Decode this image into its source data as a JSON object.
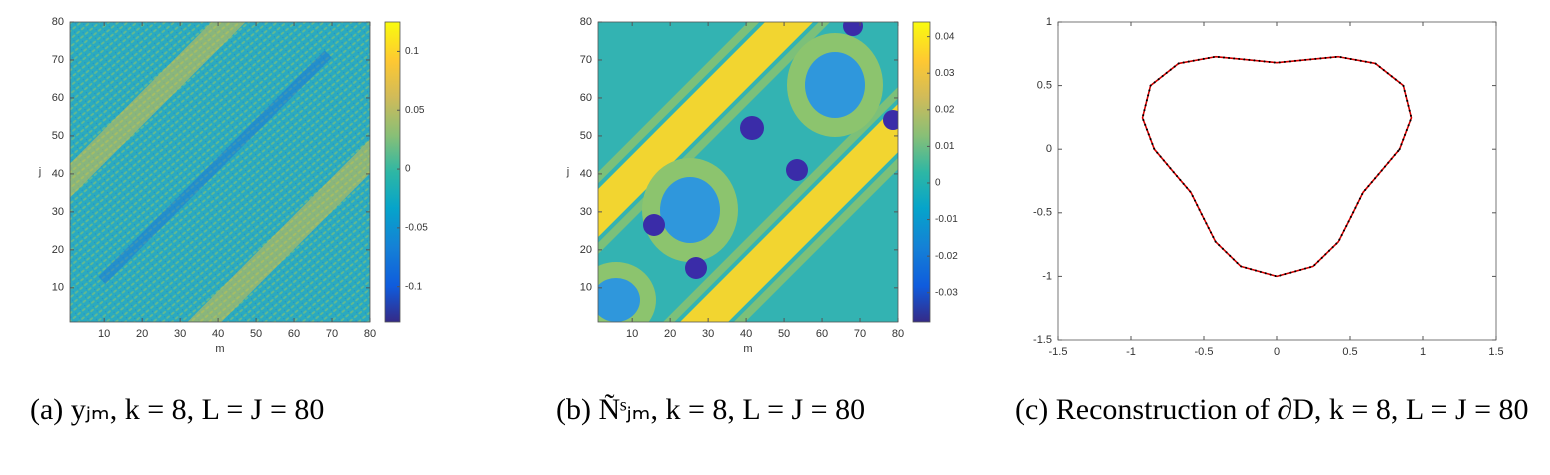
{
  "chart_data": [
    {
      "type": "heatmap",
      "caption": "(a) yⱼₘ, k = 8, L = J = 80",
      "xlabel": "m",
      "ylabel": "j",
      "xlim": [
        1,
        80
      ],
      "xticks": [
        10,
        20,
        30,
        40,
        50,
        60,
        70,
        80
      ],
      "ylim": [
        1,
        80
      ],
      "yticks": [
        10,
        20,
        30,
        40,
        50,
        60,
        70,
        80
      ],
      "clim": [
        -0.13,
        0.125
      ],
      "cticks": [
        -0.1,
        -0.05,
        0,
        0.05,
        0.1
      ]
    },
    {
      "type": "heatmap",
      "caption": "(b) Ñˢⱼₘ, k = 8, L = J = 80",
      "xlabel": "m",
      "ylabel": "j",
      "xlim": [
        1,
        80
      ],
      "xticks": [
        10,
        20,
        30,
        40,
        50,
        60,
        70,
        80
      ],
      "ylim": [
        1,
        80
      ],
      "yticks": [
        10,
        20,
        30,
        40,
        50,
        60,
        70,
        80
      ],
      "clim": [
        -0.038,
        0.044
      ],
      "cticks": [
        -0.03,
        -0.02,
        -0.01,
        0,
        0.01,
        0.02,
        0.03,
        0.04
      ]
    },
    {
      "type": "line",
      "caption": "(c) Reconstruction of ∂D, k = 8, L = J = 80",
      "xlim": [
        -1.5,
        1.5
      ],
      "xticks": [
        -1.5,
        -1,
        -0.5,
        0,
        0.5,
        1,
        1.5
      ],
      "ylim": [
        -1.5,
        1
      ],
      "yticks": [
        -1.5,
        -1,
        -0.5,
        0,
        0.5,
        1
      ],
      "x": [
        0.84,
        0.921,
        0.866,
        0.674,
        0.42,
        0.188,
        0,
        -0.188,
        -0.42,
        -0.674,
        -0.866,
        -0.921,
        -0.84,
        -0.702,
        -0.589,
        -0.514,
        -0.42,
        -0.247,
        0,
        0.247,
        0.42,
        0.514,
        0.589,
        0.702,
        0.84
      ],
      "series": [
        {
          "color": "#d40000",
          "style": "solid",
          "values": [
            0,
            0.247,
            0.5,
            0.674,
            0.727,
            0.702,
            0.68,
            0.702,
            0.727,
            0.674,
            0.5,
            0.247,
            0,
            -0.188,
            -0.34,
            -0.514,
            -0.727,
            -0.921,
            -1,
            -0.921,
            -0.727,
            -0.514,
            -0.34,
            -0.188,
            0
          ]
        },
        {
          "color": "#000000",
          "style": "dotted",
          "values": [
            0,
            0.247,
            0.5,
            0.674,
            0.727,
            0.702,
            0.68,
            0.702,
            0.727,
            0.674,
            0.5,
            0.247,
            0,
            -0.188,
            -0.34,
            -0.514,
            -0.727,
            -0.921,
            -1,
            -0.921,
            -0.727,
            -0.514,
            -0.34,
            -0.188,
            0
          ]
        }
      ]
    }
  ]
}
